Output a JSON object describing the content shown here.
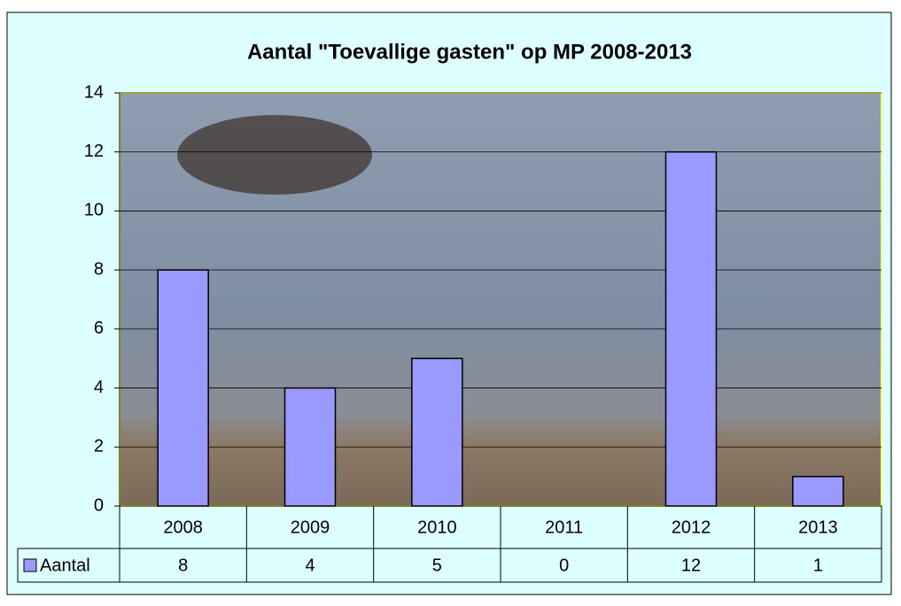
{
  "chart_data": {
    "type": "bar",
    "title": "Aantal \"Toevallige gasten\" op MP 2008-2013",
    "categories": [
      "2008",
      "2009",
      "2010",
      "2011",
      "2012",
      "2013"
    ],
    "series": [
      {
        "name": "Aantal",
        "color": "#9999ff",
        "values": [
          8,
          4,
          5,
          0,
          12,
          1
        ]
      }
    ],
    "ylim": [
      0,
      14
    ],
    "yticks": [
      0,
      2,
      4,
      6,
      8,
      10,
      12,
      14
    ],
    "grid": true,
    "data_table": true
  }
}
